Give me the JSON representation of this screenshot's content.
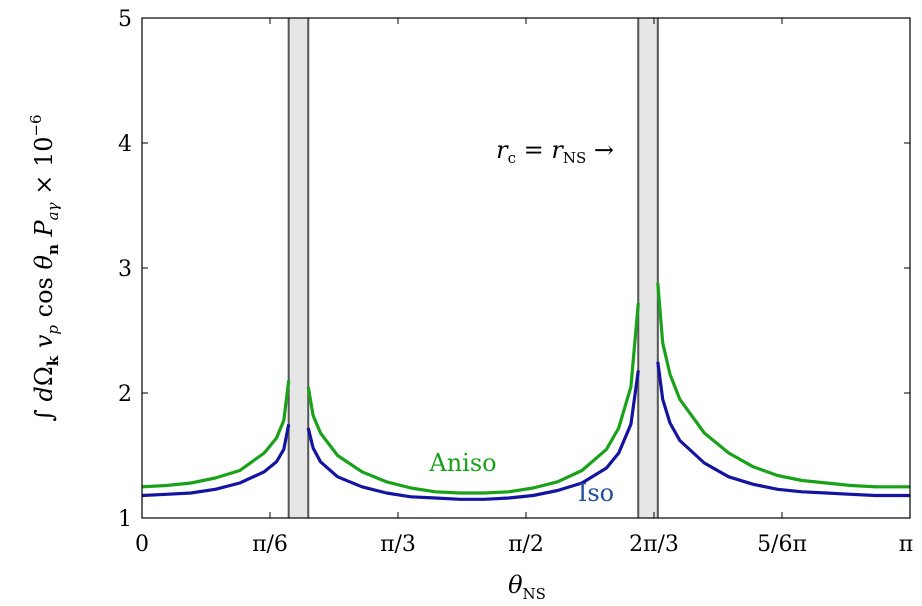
{
  "chart_data": {
    "type": "line",
    "xlabel": "θ_NS",
    "ylabel": "∫ dΩ_k v_p cos θ_n P_aγ × 10^−6",
    "xlim": [
      0,
      3.14159
    ],
    "ylim": [
      1,
      5
    ],
    "x_ticks": [
      {
        "value": 0,
        "label": "0"
      },
      {
        "value": 0.5236,
        "label": "π/6"
      },
      {
        "value": 1.0472,
        "label": "π/3"
      },
      {
        "value": 1.5708,
        "label": "π/2"
      },
      {
        "value": 2.0944,
        "label": "2π/3"
      },
      {
        "value": 2.618,
        "label": "5/6π"
      },
      {
        "value": 3.14159,
        "label": "π"
      }
    ],
    "y_ticks": [
      {
        "value": 1,
        "label": "1"
      },
      {
        "value": 2,
        "label": "2"
      },
      {
        "value": 3,
        "label": "3"
      },
      {
        "value": 4,
        "label": "4"
      },
      {
        "value": 5,
        "label": "5"
      }
    ],
    "grid": false,
    "shaded_bands": [
      {
        "x": [
          0.6,
          0.68
        ]
      },
      {
        "x": [
          2.03,
          2.11
        ]
      }
    ],
    "annotation": {
      "text": "r_c = r_NS →"
    },
    "series": [
      {
        "name": "Aniso",
        "color": "#1aa11a",
        "x": [
          0,
          0.1,
          0.2,
          0.3,
          0.4,
          0.5,
          0.55,
          0.58,
          0.6,
          null,
          0.68,
          0.7,
          0.73,
          0.8,
          0.9,
          1.0,
          1.1,
          1.2,
          1.3,
          1.4,
          1.5,
          1.6,
          1.7,
          1.8,
          1.9,
          1.95,
          2.0,
          2.03,
          null,
          2.11,
          2.13,
          2.16,
          2.2,
          2.3,
          2.4,
          2.5,
          2.6,
          2.7,
          2.8,
          2.9,
          3.0,
          3.14159
        ],
        "y": [
          1.25,
          1.26,
          1.28,
          1.32,
          1.38,
          1.52,
          1.64,
          1.78,
          2.1,
          null,
          2.05,
          1.82,
          1.68,
          1.5,
          1.37,
          1.29,
          1.24,
          1.21,
          1.2,
          1.2,
          1.21,
          1.24,
          1.29,
          1.38,
          1.55,
          1.72,
          2.05,
          2.72,
          null,
          2.88,
          2.4,
          2.15,
          1.95,
          1.68,
          1.52,
          1.41,
          1.34,
          1.3,
          1.28,
          1.26,
          1.25,
          1.25
        ]
      },
      {
        "name": "Iso",
        "color": "#1414a0",
        "x": [
          0,
          0.1,
          0.2,
          0.3,
          0.4,
          0.5,
          0.55,
          0.58,
          0.6,
          null,
          0.68,
          0.7,
          0.73,
          0.8,
          0.9,
          1.0,
          1.1,
          1.2,
          1.3,
          1.4,
          1.5,
          1.6,
          1.7,
          1.8,
          1.9,
          1.95,
          2.0,
          2.03,
          null,
          2.11,
          2.13,
          2.16,
          2.2,
          2.3,
          2.4,
          2.5,
          2.6,
          2.7,
          2.8,
          2.9,
          3.0,
          3.14159
        ],
        "y": [
          1.18,
          1.19,
          1.2,
          1.23,
          1.28,
          1.37,
          1.45,
          1.55,
          1.75,
          null,
          1.72,
          1.56,
          1.45,
          1.33,
          1.25,
          1.2,
          1.17,
          1.16,
          1.15,
          1.15,
          1.16,
          1.18,
          1.22,
          1.28,
          1.4,
          1.52,
          1.75,
          2.18,
          null,
          2.25,
          1.95,
          1.76,
          1.62,
          1.44,
          1.33,
          1.27,
          1.23,
          1.21,
          1.2,
          1.19,
          1.18,
          1.18
        ]
      }
    ]
  }
}
